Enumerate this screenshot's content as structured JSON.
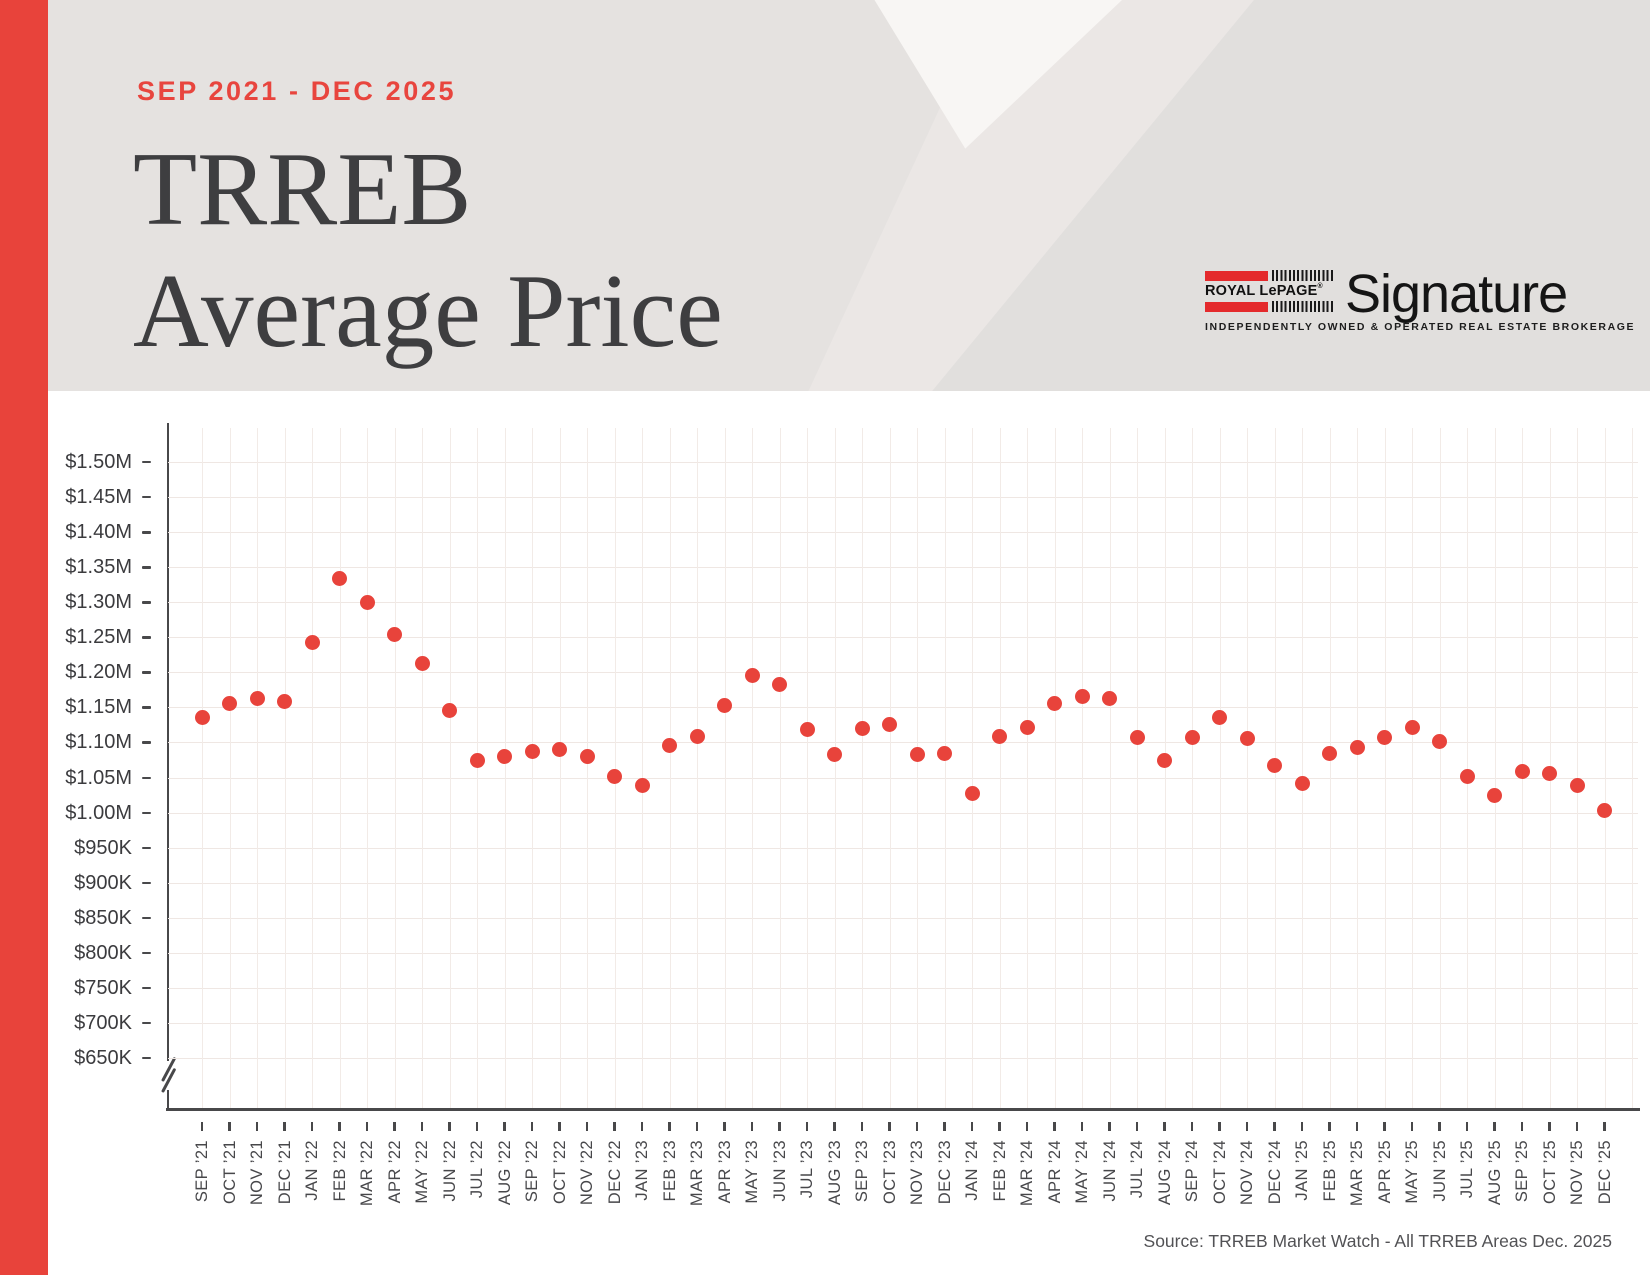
{
  "page": {
    "background": "#FFFFFF",
    "sidebar_color": "#E8433B"
  },
  "header": {
    "eyebrow": "SEP 2021 - DEC 2025",
    "title_line1": "TRREB",
    "title_line2": "Average Price",
    "background": "#E5E2E0",
    "logo": {
      "brand": "ROYAL LePAGE",
      "registered": "®",
      "name": "Signature",
      "tagline": "INDEPENDENTLY OWNED & OPERATED REAL ESTATE BROKERAGE",
      "bar_color": "#E42A2C"
    }
  },
  "chart_data": {
    "type": "scatter",
    "title": "TRREB Average Price",
    "subtitle": "SEP 2021 - DEC 2025",
    "point_color": "#E8433B",
    "grid": true,
    "legend": "none",
    "y_axis": {
      "min": 650000,
      "max": 1500000,
      "step": 50000,
      "format": "currency",
      "axis_break_below_min": true
    },
    "y_tick_labels": [
      "$1.50M",
      "$1.45M",
      "$1.40M",
      "$1.35M",
      "$1.30M",
      "$1.25M",
      "$1.20M",
      "$1.15M",
      "$1.10M",
      "$1.05M",
      "$1.00M",
      "$950K",
      "$900K",
      "$850K",
      "$800K",
      "$750K",
      "$700K",
      "$650K"
    ],
    "x_labels": [
      "SEP ’21",
      "OCT ’21",
      "NOV ’21",
      "DEC ’21",
      "JAN ’22",
      "FEB ’22",
      "MAR ’22",
      "APR ’22",
      "MAY ’22",
      "JUN ’22",
      "JUL ’22",
      "AUG ’22",
      "SEP ’22",
      "OCT ’22",
      "NOV ’22",
      "DEC ’22",
      "JAN ’23",
      "FEB ’23",
      "MAR ’23",
      "APR ’23",
      "MAY ’23",
      "JUN ’23",
      "JUL ’23",
      "AUG ’23",
      "SEP ’23",
      "OCT ’23",
      "NOV ’23",
      "DEC ’23",
      "JAN ’24",
      "FEB ’24",
      "MAR ’24",
      "APR ’24",
      "MAY ’24",
      "JUN ’24",
      "JUL ’24",
      "AUG ’24",
      "SEP ’24",
      "OCT ’24",
      "NOV ’24",
      "DEC ’24",
      "JAN ’25",
      "FEB ’25",
      "MAR ’25",
      "APR ’25",
      "MAY ’25",
      "JUN ’25",
      "JUL ’25",
      "AUG ’25",
      "SEP ’25",
      "OCT ’25",
      "NOV ’25",
      "DEC ’25"
    ],
    "series": [
      {
        "name": "Average Price ($)",
        "values": [
          1136280,
          1155345,
          1163323,
          1157849,
          1242793,
          1334544,
          1299894,
          1254436,
          1212806,
          1146254,
          1074754,
          1079500,
          1086762,
          1089428,
          1079395,
          1051216,
          1038668,
          1095617,
          1108606,
          1153269,
          1196101,
          1182120,
          1118374,
          1082496,
          1119428,
          1125928,
          1082179,
          1084692,
          1026703,
          1108720,
          1121615,
          1156167,
          1165691,
          1162167,
          1106617,
          1074425,
          1107291,
          1135215,
          1106050,
          1067186,
          1040994,
          1084547,
          1093254,
          1107256,
          1120879,
          1101691,
          1052000,
          1025000,
          1059000,
          1056000,
          1039000,
          1003000
        ]
      }
    ]
  },
  "footer": {
    "source": "Source: TRREB Market Watch - All TRREB Areas Dec. 2025"
  }
}
